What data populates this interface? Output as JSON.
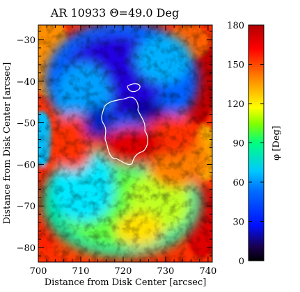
{
  "chart_data": {
    "type": "heatmap",
    "title": "AR 10933 Θ=49.0 Deg",
    "xlabel": "Distance from Disk Center [arcsec]",
    "ylabel": "Distance from Disk Center [arcsec]",
    "xlim": [
      700,
      741
    ],
    "ylim": [
      -83.5,
      -26.5
    ],
    "xticks": [
      700,
      710,
      720,
      730,
      740
    ],
    "yticks": [
      -30,
      -40,
      -50,
      -60,
      -70,
      -80
    ],
    "xtick_labels": [
      "700",
      "710",
      "720",
      "730",
      "740"
    ],
    "ytick_labels": [
      "−30",
      "−40",
      "−50",
      "−60",
      "−70",
      "−80"
    ],
    "colorbar": {
      "label": "φ [Deg]",
      "range": [
        0,
        180
      ],
      "ticks": [
        0,
        30,
        60,
        90,
        120,
        150,
        180
      ],
      "tick_labels": [
        "0",
        "30",
        "60",
        "90",
        "120",
        "150",
        "180"
      ],
      "colormap": "rainbow (black-blue-cyan-green-yellow-red-dark red)"
    },
    "features": {
      "sunspot_center": [
        720.5,
        -54.5
      ],
      "umbra_contour_color": "#ffffff",
      "description_visible": "azimuth map of sunspot penumbra with white umbra contour"
    }
  }
}
